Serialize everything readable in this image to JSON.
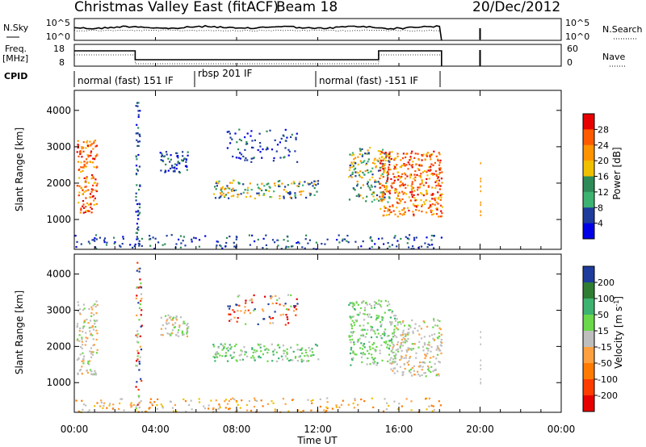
{
  "header": {
    "title": "Christmas Valley East (fitACF)",
    "beam": "Beam 18",
    "date": "20/Dec/2012"
  },
  "noise_panel": {
    "left_label": "N.Sky",
    "right_label": "N.Search",
    "ticks": [
      "10^5",
      "10^0"
    ]
  },
  "freq_panel": {
    "left_label_1": "Freq.",
    "left_label_2": "[MHz]",
    "left_ticks": [
      "18",
      "8"
    ],
    "right_label": "Nave",
    "right_ticks": [
      "60",
      "0"
    ]
  },
  "cpid": {
    "label": "CPID",
    "segments": [
      {
        "text": "normal (fast) 151 IF",
        "start": 0,
        "end": 6
      },
      {
        "text": "rbsp 201 IF",
        "start": 6,
        "end": 12
      },
      {
        "text": "normal (fast) -151 IF",
        "start": 12,
        "end": 18.2
      }
    ]
  },
  "x_axis": {
    "label": "Time UT",
    "ticks": [
      "00:00",
      "04:00",
      "08:00",
      "12:00",
      "16:00",
      "20:00",
      "00:00"
    ],
    "range": [
      0,
      24
    ]
  },
  "chart_data": [
    {
      "type": "heatmap",
      "name": "power-panel",
      "ylabel": "Slant Range [km]",
      "yticks": [
        1000,
        2000,
        3000,
        4000
      ],
      "ylim": [
        180,
        4550
      ],
      "xlim": [
        0,
        24
      ],
      "colorbar": {
        "label": "Power [dB]",
        "ticks": [
          "28",
          "24",
          "20",
          "16",
          "12",
          "8",
          "4"
        ],
        "colors": [
          "#e60000",
          "#ff5a00",
          "#ff9400",
          "#f0c000",
          "#2e8b57",
          "#3cb371",
          "#1e3c9c",
          "#0000e6"
        ]
      },
      "regions": [
        {
          "t": [
            0.1,
            1.1
          ],
          "r": [
            1200,
            3200
          ],
          "level": "high"
        },
        {
          "t": [
            3.0,
            3.2
          ],
          "r": [
            300,
            4500
          ],
          "level": "low"
        },
        {
          "t": [
            4.2,
            5.6
          ],
          "r": [
            2300,
            2900
          ],
          "level": "low"
        },
        {
          "t": [
            6.8,
            12.0
          ],
          "r": [
            1600,
            2100
          ],
          "level": "mid"
        },
        {
          "t": [
            7.5,
            11.0
          ],
          "r": [
            2600,
            3500
          ],
          "level": "low"
        },
        {
          "t": [
            13.5,
            15.5
          ],
          "r": [
            1500,
            3000
          ],
          "level": "mid"
        },
        {
          "t": [
            15.0,
            18.1
          ],
          "r": [
            1100,
            2900
          ],
          "level": "high"
        },
        {
          "t": [
            0,
            18.1
          ],
          "r": [
            200,
            600
          ],
          "level": "low"
        }
      ]
    },
    {
      "type": "heatmap",
      "name": "velocity-panel",
      "ylabel": "Slant Range [km]",
      "yticks": [
        1000,
        2000,
        3000,
        4000
      ],
      "ylim": [
        180,
        4550
      ],
      "xlim": [
        0,
        24
      ],
      "colorbar": {
        "label": "Velocity [m s^-1]",
        "ticks": [
          "200",
          "100",
          "50",
          "15",
          "-15",
          "-50",
          "-100",
          "-200"
        ],
        "colors": [
          "#1e3c9c",
          "#2e7d32",
          "#3cb371",
          "#6ad84a",
          "#bebebe",
          "#ffa040",
          "#ff7a00",
          "#ff3c00",
          "#e60000"
        ]
      },
      "regions": [
        {
          "t": [
            0.1,
            1.1
          ],
          "r": [
            1200,
            3300
          ],
          "level": "zero"
        },
        {
          "t": [
            3.0,
            3.3
          ],
          "r": [
            300,
            4400
          ],
          "level": "mixed"
        },
        {
          "t": [
            4.2,
            5.6
          ],
          "r": [
            2300,
            2900
          ],
          "level": "zero"
        },
        {
          "t": [
            6.8,
            12.0
          ],
          "r": [
            1600,
            2100
          ],
          "level": "pos"
        },
        {
          "t": [
            7.5,
            11.0
          ],
          "r": [
            2600,
            3500
          ],
          "level": "mixed"
        },
        {
          "t": [
            13.5,
            15.8
          ],
          "r": [
            1500,
            3300
          ],
          "level": "pos"
        },
        {
          "t": [
            15.5,
            18.1
          ],
          "r": [
            1200,
            2800
          ],
          "level": "zero"
        },
        {
          "t": [
            0,
            18.1
          ],
          "r": [
            200,
            600
          ],
          "level": "neg"
        }
      ]
    }
  ]
}
